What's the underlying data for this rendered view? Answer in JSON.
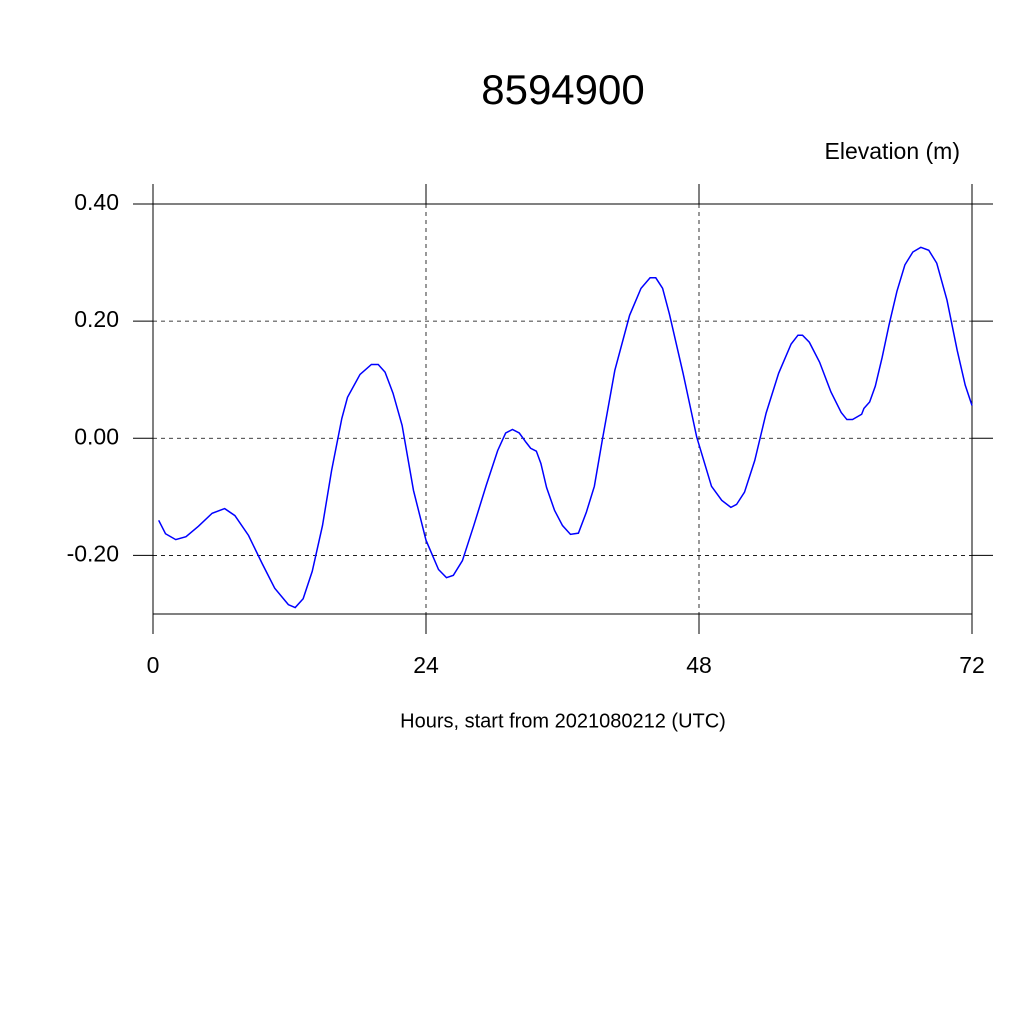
{
  "chart_data": {
    "type": "line",
    "title": "8594900",
    "ylabel": "Elevation (m)",
    "xlabel": "Hours, start from 2021080212 (UTC)",
    "color": "#0000ff",
    "grid": true,
    "xlim": [
      0,
      72
    ],
    "xticks": [
      0,
      24,
      48,
      72
    ],
    "ylim": [
      -0.3,
      0.4
    ],
    "yticks": [
      {
        "value": -0.2,
        "label": "-0.20"
      },
      {
        "value": 0,
        "label": "0.00"
      },
      {
        "value": 0.2,
        "label": "0.20"
      },
      {
        "value": 0.4,
        "label": "0.40"
      }
    ],
    "x": [
      0.5,
      1.1,
      2.0,
      2.9,
      4.0,
      5.2,
      6.3,
      7.2,
      8.4,
      9.6,
      10.7,
      11.9,
      12.5,
      13.2,
      14.0,
      14.9,
      15.7,
      16.6,
      17.1,
      18.2,
      19.2,
      19.8,
      20.4,
      21.1,
      21.9,
      22.9,
      24.0,
      25.1,
      25.8,
      26.4,
      27.2,
      28.2,
      29.3,
      30.3,
      31.0,
      31.6,
      32.2,
      32.8,
      33.2,
      33.7,
      34.1,
      34.6,
      35.3,
      36.0,
      36.7,
      37.4,
      38.1,
      38.8,
      39.5,
      40.6,
      41.9,
      42.9,
      43.7,
      44.2,
      44.8,
      45.4,
      46.6,
      47.8,
      49.1,
      50.0,
      50.8,
      51.3,
      52.0,
      52.9,
      53.9,
      55.0,
      56.1,
      56.7,
      57.1,
      57.7,
      58.6,
      59.6,
      60.5,
      61.0,
      61.5,
      62.3,
      62.5,
      63.0,
      63.5,
      64.1,
      64.7,
      65.4,
      66.1,
      66.8,
      67.5,
      68.2,
      68.9,
      69.8,
      70.7,
      71.4,
      72.0
    ],
    "values": [
      -0.14,
      -0.163,
      -0.173,
      -0.168,
      -0.15,
      -0.128,
      -0.12,
      -0.132,
      -0.166,
      -0.214,
      -0.256,
      -0.284,
      -0.289,
      -0.274,
      -0.227,
      -0.149,
      -0.055,
      0.034,
      0.07,
      0.109,
      0.126,
      0.126,
      0.113,
      0.077,
      0.022,
      -0.089,
      -0.174,
      -0.224,
      -0.238,
      -0.234,
      -0.209,
      -0.149,
      -0.08,
      -0.021,
      0.009,
      0.015,
      0.009,
      -0.007,
      -0.017,
      -0.022,
      -0.043,
      -0.084,
      -0.123,
      -0.149,
      -0.164,
      -0.162,
      -0.126,
      -0.082,
      -0.003,
      0.116,
      0.21,
      0.256,
      0.274,
      0.274,
      0.256,
      0.212,
      0.111,
      0.002,
      -0.082,
      -0.106,
      -0.118,
      -0.113,
      -0.092,
      -0.038,
      0.043,
      0.111,
      0.161,
      0.176,
      0.176,
      0.164,
      0.13,
      0.079,
      0.044,
      0.032,
      0.032,
      0.041,
      0.051,
      0.062,
      0.089,
      0.138,
      0.193,
      0.251,
      0.296,
      0.318,
      0.326,
      0.321,
      0.299,
      0.236,
      0.15,
      0.091,
      0.056
    ]
  }
}
